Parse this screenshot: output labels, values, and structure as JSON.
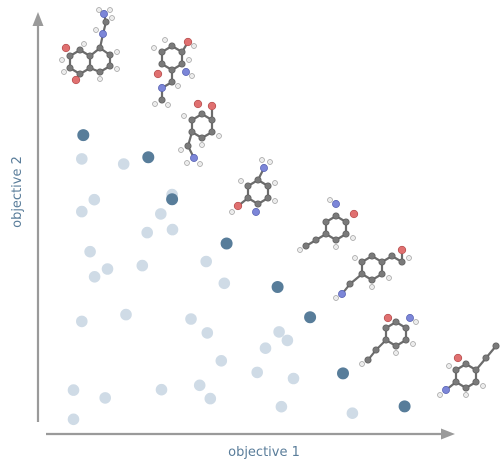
{
  "chart_data": {
    "type": "scatter",
    "xlabel": "objective 1",
    "ylabel": "objective 2",
    "xlim": [
      0,
      10
    ],
    "ylim": [
      0,
      10
    ],
    "grid": false,
    "colors": {
      "dominated": "#cfdbe6",
      "pareto": "#587d9a",
      "axis": "#9a9a9a",
      "label": "#5a7d9a"
    },
    "series": [
      {
        "role": "dominated",
        "x": [
          0.33,
          0.33,
          0.55,
          0.55,
          0.55,
          0.88,
          0.89,
          0.77,
          1.17,
          1.23,
          1.66,
          2.15,
          1.72,
          2.28,
          2.94,
          2.64,
          2.66,
          2.95,
          3.67,
          3.44,
          3.87,
          3.95,
          3.84,
          4.24,
          4.32,
          5.41,
          5.19,
          5.77,
          5.83,
          5.99,
          6.15,
          7.71
        ],
        "y": [
          0.05,
          0.91,
          7.71,
          2.93,
          6.16,
          6.51,
          4.24,
          4.98,
          0.68,
          4.47,
          7.56,
          4.57,
          3.13,
          5.54,
          6.66,
          6.09,
          0.92,
          5.63,
          1.05,
          3.0,
          2.59,
          0.66,
          4.69,
          1.77,
          4.05,
          2.14,
          1.43,
          2.62,
          0.42,
          2.37,
          1.25,
          0.23
        ]
      },
      {
        "role": "pareto",
        "x": [
          0.59,
          2.31,
          2.94,
          4.38,
          5.73,
          6.59,
          7.46,
          9.09
        ],
        "y": [
          8.41,
          7.76,
          6.52,
          5.22,
          3.94,
          3.05,
          1.4,
          0.43
        ]
      }
    ]
  }
}
